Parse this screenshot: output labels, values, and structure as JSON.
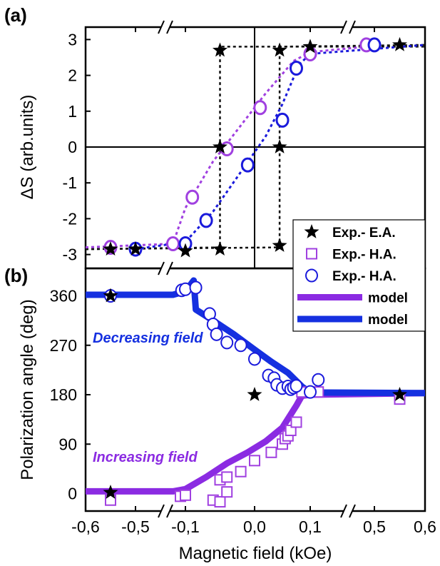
{
  "chart_data": [
    {
      "panel": "a",
      "panel_label": "(a)",
      "type": "scatter",
      "title": "",
      "xlabel": "",
      "ylabel": "ΔS (arb.units)",
      "xlim": [
        -0.6,
        0.6
      ],
      "x_axis_breaks": [
        [
          -0.5,
          -0.1
        ],
        [
          0.1,
          0.5
        ]
      ],
      "ylim": [
        -3.2,
        3.2
      ],
      "y_ticks": [
        "3",
        "2",
        "1",
        "0",
        "-1",
        "-2",
        "-3"
      ],
      "grid": false,
      "zero_lines": true,
      "series": [
        {
          "marker": "star",
          "color": "#000000",
          "points": [
            [
              -0.55,
              -2.85
            ],
            [
              -0.5,
              -2.85
            ],
            [
              -0.1,
              -2.9
            ],
            [
              -0.05,
              -2.85
            ],
            [
              -0.05,
              0.0
            ],
            [
              -0.05,
              2.7
            ],
            [
              0.045,
              -2.75
            ],
            [
              0.045,
              0.0
            ],
            [
              0.045,
              2.7
            ],
            [
              0.1,
              2.8
            ],
            [
              0.55,
              2.85
            ]
          ]
        },
        {
          "marker": "open-circle",
          "color": "#a040e0",
          "points": [
            [
              -0.55,
              -2.8
            ],
            [
              -0.2,
              -2.7
            ],
            [
              -0.09,
              -1.4
            ],
            [
              -0.04,
              -0.05
            ],
            [
              0.01,
              1.1
            ],
            [
              0.1,
              2.6
            ],
            [
              0.45,
              2.85
            ]
          ]
        },
        {
          "marker": "open-circle",
          "color": "#1a1adc",
          "points": [
            [
              -0.5,
              -2.85
            ],
            [
              -0.1,
              -2.7
            ],
            [
              -0.07,
              -2.05
            ],
            [
              -0.01,
              -0.5
            ],
            [
              0.05,
              0.75
            ],
            [
              0.075,
              2.2
            ],
            [
              0.5,
              2.85
            ]
          ]
        }
      ]
    },
    {
      "panel": "b",
      "panel_label": "(b)",
      "type": "scatter",
      "title": "",
      "xlabel": "Magnetic field (kOe)",
      "ylabel": "Polarization angle (deg)",
      "xlim": [
        -0.6,
        0.6
      ],
      "x_axis_breaks": [
        [
          -0.5,
          -0.1
        ],
        [
          0.1,
          0.5
        ]
      ],
      "x_ticks": [
        "-0,6",
        "-0,5",
        "-0,1",
        "0,0",
        "0,1",
        "0,5",
        "0,6"
      ],
      "ylim": [
        -25,
        385
      ],
      "y_ticks": [
        "0",
        "90",
        "180",
        "270",
        "360"
      ],
      "grid": false,
      "annotations": [
        "Decreasing field",
        "Increasing field"
      ],
      "series": [
        {
          "name": "Exp.- E.A.",
          "marker": "star",
          "color": "#000000",
          "points": [
            [
              -0.55,
              360
            ],
            [
              -0.55,
              2
            ],
            [
              0.0,
              180
            ],
            [
              0.55,
              180
            ]
          ]
        },
        {
          "name": "Exp.- H.A.",
          "marker": "open-square",
          "color": "#a040e0",
          "points": [
            [
              -0.55,
              -12
            ],
            [
              -0.14,
              -5
            ],
            [
              -0.1,
              -3
            ],
            [
              -0.06,
              -12
            ],
            [
              -0.05,
              -15
            ],
            [
              -0.05,
              25
            ],
            [
              -0.04,
              30
            ],
            [
              -0.04,
              3
            ],
            [
              -0.02,
              40
            ],
            [
              0.0,
              60
            ],
            [
              0.03,
              75
            ],
            [
              0.05,
              90
            ],
            [
              0.055,
              100
            ],
            [
              0.06,
              105
            ],
            [
              0.065,
              115
            ],
            [
              0.075,
              130
            ],
            [
              0.085,
              185
            ],
            [
              0.15,
              185
            ],
            [
              0.55,
              172
            ]
          ]
        },
        {
          "name": "Exp.- H.A.",
          "marker": "open-circle",
          "color": "#1a1adc",
          "points": [
            [
              -0.55,
              360
            ],
            [
              -0.13,
              370
            ],
            [
              -0.1,
              372
            ],
            [
              -0.085,
              375
            ],
            [
              -0.065,
              327
            ],
            [
              -0.06,
              308
            ],
            [
              -0.055,
              290
            ],
            [
              -0.04,
              275
            ],
            [
              -0.02,
              270
            ],
            [
              0.0,
              245
            ],
            [
              0.025,
              215
            ],
            [
              0.035,
              210
            ],
            [
              0.04,
              198
            ],
            [
              0.05,
              192
            ],
            [
              0.06,
              195
            ],
            [
              0.065,
              190
            ],
            [
              0.07,
              193
            ],
            [
              0.075,
              196
            ],
            [
              0.1,
              185
            ],
            [
              0.15,
              207
            ]
          ]
        },
        {
          "name": "model",
          "marker": "line",
          "color": "#8b2be2",
          "points": [
            [
              -0.6,
              4
            ],
            [
              -0.2,
              4
            ],
            [
              -0.1,
              8
            ],
            [
              -0.07,
              30
            ],
            [
              -0.04,
              55
            ],
            [
              -0.01,
              75
            ],
            [
              0.02,
              95
            ],
            [
              0.05,
              120
            ],
            [
              0.075,
              160
            ],
            [
              0.085,
              178
            ],
            [
              0.1,
              180
            ],
            [
              0.6,
              183
            ]
          ]
        },
        {
          "name": "model",
          "marker": "line",
          "color": "#1530e0",
          "points": [
            [
              -0.6,
              362
            ],
            [
              -0.2,
              362
            ],
            [
              -0.1,
              368
            ],
            [
              -0.088,
              388
            ],
            [
              -0.085,
              335
            ],
            [
              -0.06,
              315
            ],
            [
              -0.03,
              290
            ],
            [
              0.0,
              262
            ],
            [
              0.03,
              240
            ],
            [
              0.06,
              220
            ],
            [
              0.085,
              195
            ],
            [
              0.1,
              184
            ],
            [
              0.6,
              183
            ]
          ]
        }
      ]
    }
  ]
}
